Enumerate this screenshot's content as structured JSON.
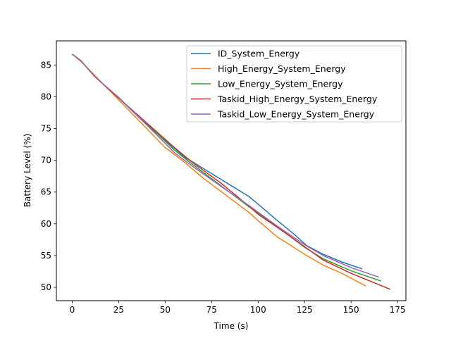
{
  "chart_data": {
    "type": "line",
    "xlabel": "Time (s)",
    "ylabel": "Battery Level (%)",
    "xlim": [
      -8.5,
      179.5
    ],
    "ylim": [
      47.9,
      88.8
    ],
    "xticks": [
      0,
      25,
      50,
      75,
      100,
      125,
      150,
      175
    ],
    "yticks": [
      50,
      55,
      60,
      65,
      70,
      75,
      80,
      85
    ],
    "grid": false,
    "legend_position": "top-right",
    "series": [
      {
        "name": "ID_System_Energy",
        "color": "#1f77b4",
        "points": [
          [
            0,
            86.7
          ],
          [
            5,
            85.6
          ],
          [
            12,
            83.2
          ],
          [
            25,
            79.8
          ],
          [
            40,
            75.6
          ],
          [
            55,
            71.9
          ],
          [
            60,
            70.6
          ],
          [
            70,
            68.8
          ],
          [
            85,
            66.1
          ],
          [
            95,
            64.3
          ],
          [
            100,
            63.1
          ],
          [
            110,
            60.6
          ],
          [
            120,
            58.2
          ],
          [
            126,
            56.6
          ],
          [
            135,
            55.2
          ],
          [
            145,
            54.0
          ],
          [
            156,
            52.9
          ]
        ]
      },
      {
        "name": "High_Energy_System_Energy",
        "color": "#ff7f0e",
        "points": [
          [
            0,
            86.7
          ],
          [
            5,
            85.5
          ],
          [
            15,
            82.5
          ],
          [
            25,
            79.5
          ],
          [
            40,
            75.0
          ],
          [
            50,
            72.0
          ],
          [
            60,
            69.8
          ],
          [
            70,
            67.3
          ],
          [
            85,
            64.0
          ],
          [
            95,
            61.8
          ],
          [
            100,
            60.5
          ],
          [
            110,
            58.0
          ],
          [
            125,
            55.2
          ],
          [
            135,
            53.5
          ],
          [
            145,
            52.2
          ],
          [
            158,
            50.2
          ]
        ]
      },
      {
        "name": "Low_Energy_System_Energy",
        "color": "#2ca02c",
        "points": [
          [
            0,
            86.7
          ],
          [
            5,
            85.6
          ],
          [
            12,
            83.2
          ],
          [
            25,
            79.8
          ],
          [
            40,
            75.8
          ],
          [
            55,
            71.6
          ],
          [
            65,
            69.3
          ],
          [
            80,
            66.0
          ],
          [
            95,
            62.7
          ],
          [
            110,
            59.6
          ],
          [
            125,
            56.3
          ],
          [
            135,
            54.5
          ],
          [
            150,
            52.6
          ],
          [
            166,
            51.0
          ]
        ]
      },
      {
        "name": "Taskid_High_Energy_System_Energy",
        "color": "#d62728",
        "points": [
          [
            0,
            86.7
          ],
          [
            5,
            85.6
          ],
          [
            12,
            83.2
          ],
          [
            25,
            79.8
          ],
          [
            40,
            75.9
          ],
          [
            55,
            72.0
          ],
          [
            65,
            69.6
          ],
          [
            80,
            66.4
          ],
          [
            95,
            62.8
          ],
          [
            100,
            61.5
          ],
          [
            115,
            58.5
          ],
          [
            125,
            56.4
          ],
          [
            135,
            54.3
          ],
          [
            150,
            52.2
          ],
          [
            171,
            49.7
          ]
        ]
      },
      {
        "name": "Taskid_Low_Energy_System_Energy",
        "color": "#9467bd",
        "points": [
          [
            0,
            86.7
          ],
          [
            5,
            85.6
          ],
          [
            12,
            83.2
          ],
          [
            25,
            79.9
          ],
          [
            40,
            75.6
          ],
          [
            55,
            71.2
          ],
          [
            65,
            69.0
          ],
          [
            80,
            65.9
          ],
          [
            95,
            62.9
          ],
          [
            110,
            59.7
          ],
          [
            125,
            56.7
          ],
          [
            135,
            55.0
          ],
          [
            150,
            53.1
          ],
          [
            165,
            51.6
          ]
        ]
      }
    ]
  }
}
